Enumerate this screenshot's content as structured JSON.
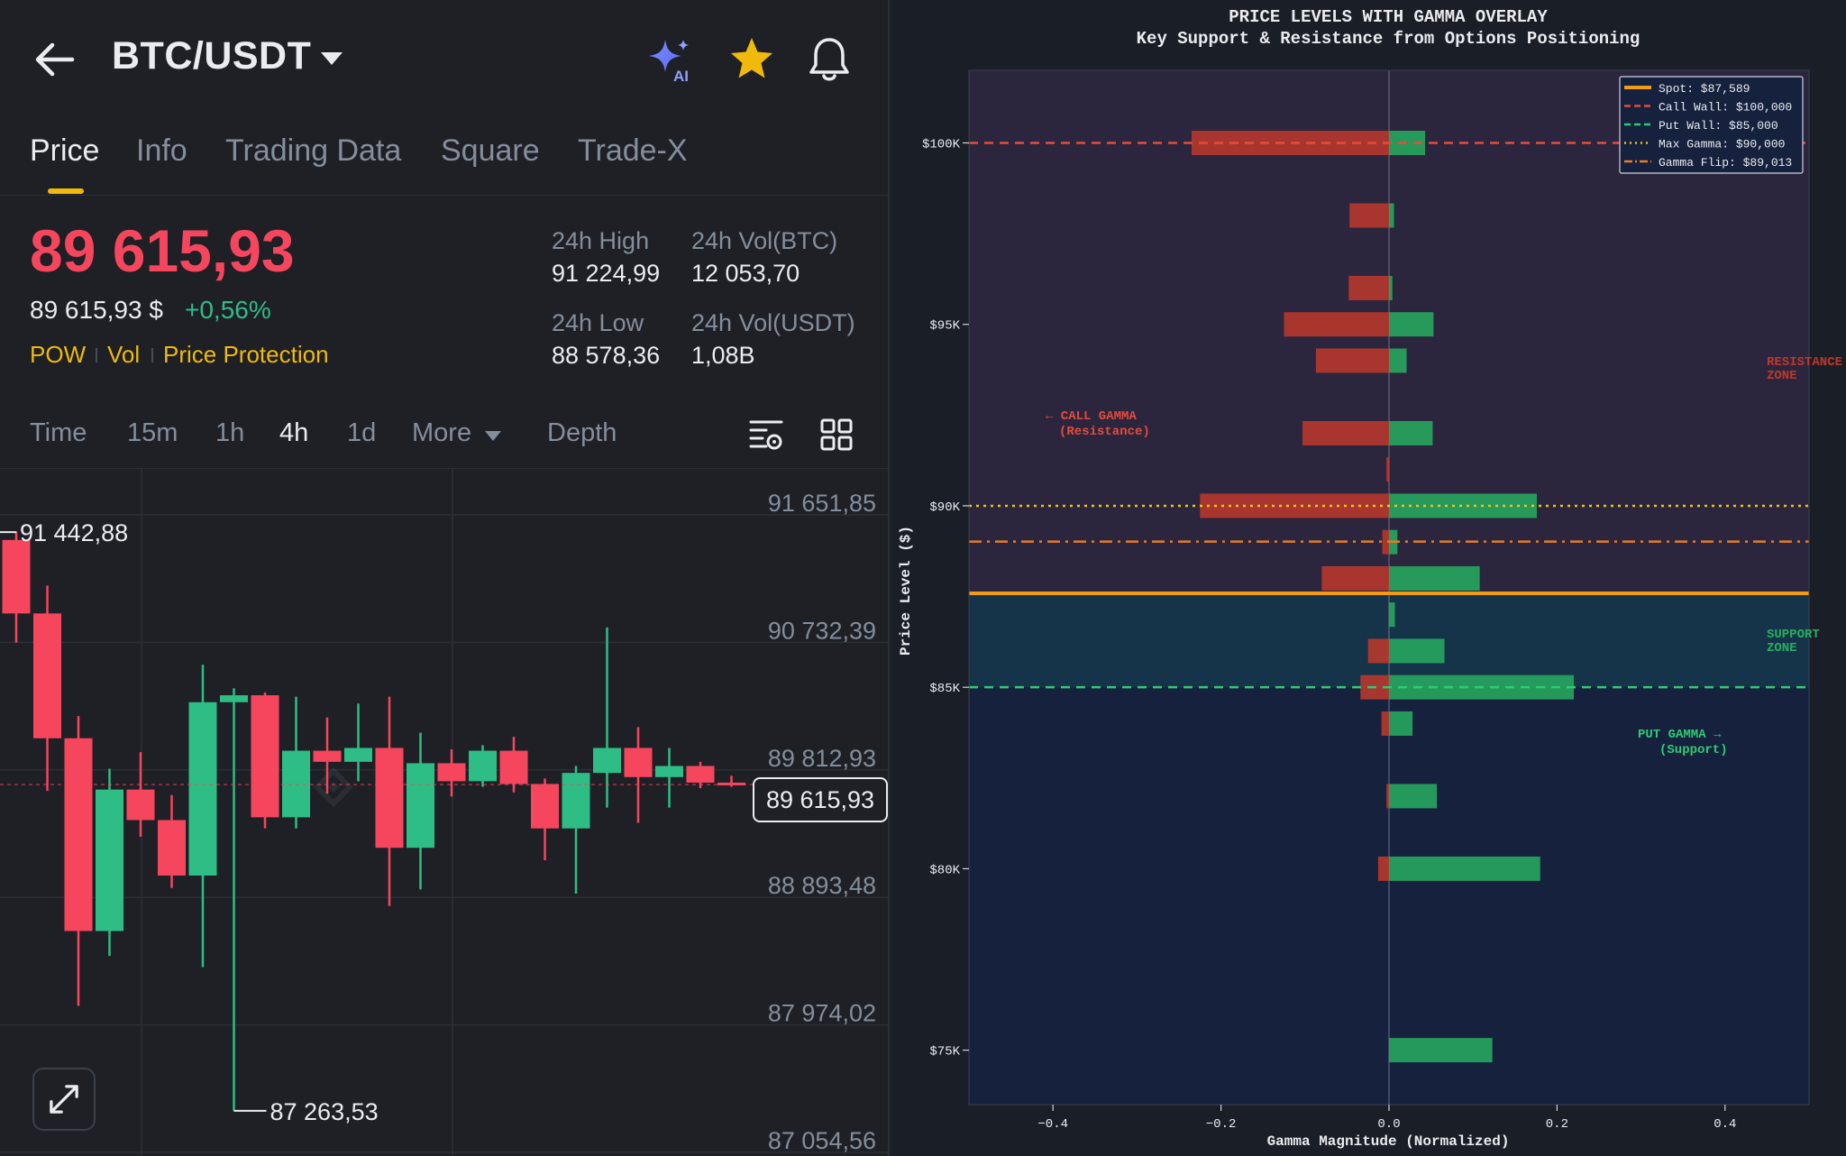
{
  "header": {
    "pair": "BTC/USDT",
    "back_icon": "arrow-left-icon",
    "ai_icon": "sparkle-ai-icon",
    "ai_badge": "AI",
    "favorite_icon": "star-icon",
    "alert_icon": "bell-icon"
  },
  "tabs": [
    {
      "label": "Price",
      "active": true
    },
    {
      "label": "Info",
      "active": false
    },
    {
      "label": "Trading Data",
      "active": false
    },
    {
      "label": "Square",
      "active": false
    },
    {
      "label": "Trade-X",
      "active": false
    }
  ],
  "ticker": {
    "last_price": "89 615,93",
    "usd_price": "89 615,93 $",
    "change": "+0,56%",
    "tags": [
      "POW",
      "Vol",
      "Price Protection"
    ],
    "high_label": "24h High",
    "high_value": "91 224,99",
    "vol_btc_label": "24h Vol(BTC)",
    "vol_btc_value": "12 053,70",
    "low_label": "24h Low",
    "low_value": "88 578,36",
    "vol_usdt_label": "24h Vol(USDT)",
    "vol_usdt_value": "1,08B"
  },
  "timeframes": [
    {
      "label": "Time",
      "active": false
    },
    {
      "label": "15m",
      "active": false
    },
    {
      "label": "1h",
      "active": false
    },
    {
      "label": "4h",
      "active": true
    },
    {
      "label": "1d",
      "active": false
    },
    {
      "label": "More",
      "active": false
    },
    {
      "label": "Depth",
      "active": false
    }
  ],
  "candle_chart": {
    "price_axis": [
      "91 651,85",
      "90 732,39",
      "89 812,93",
      "88 893,48",
      "87 974,02",
      "87 054,56"
    ],
    "current_price": "89 615,93",
    "high_marker": "91 442,88",
    "low_marker": "87 263,53",
    "candles": [
      {
        "o": 91380,
        "c": 90850,
        "h": 91442.88,
        "l": 90640
      },
      {
        "o": 90850,
        "c": 89950,
        "h": 91050,
        "l": 89570
      },
      {
        "o": 89950,
        "c": 88560,
        "h": 90110,
        "l": 88020
      },
      {
        "o": 88560,
        "c": 89580,
        "h": 89730,
        "l": 88380
      },
      {
        "o": 89580,
        "c": 89360,
        "h": 89850,
        "l": 89240
      },
      {
        "o": 89360,
        "c": 88960,
        "h": 89540,
        "l": 88870
      },
      {
        "o": 88960,
        "c": 90210,
        "h": 90480,
        "l": 88300
      },
      {
        "o": 90210,
        "c": 90260,
        "h": 90310,
        "l": 87263.53
      },
      {
        "o": 90260,
        "c": 89380,
        "h": 90280,
        "l": 89300
      },
      {
        "o": 89380,
        "c": 89860,
        "h": 90250,
        "l": 89300
      },
      {
        "o": 89860,
        "c": 89780,
        "h": 90100,
        "l": 89550
      },
      {
        "o": 89780,
        "c": 89880,
        "h": 90200,
        "l": 89640
      },
      {
        "o": 89880,
        "c": 89160,
        "h": 90250,
        "l": 88740
      },
      {
        "o": 89160,
        "c": 89770,
        "h": 89990,
        "l": 88860
      },
      {
        "o": 89770,
        "c": 89640,
        "h": 89870,
        "l": 89530
      },
      {
        "o": 89640,
        "c": 89860,
        "h": 89900,
        "l": 89600
      },
      {
        "o": 89860,
        "c": 89620,
        "h": 89960,
        "l": 89560
      },
      {
        "o": 89620,
        "c": 89300,
        "h": 89660,
        "l": 89070
      },
      {
        "o": 89300,
        "c": 89700,
        "h": 89750,
        "l": 88830
      },
      {
        "o": 89700,
        "c": 89880,
        "h": 90750,
        "l": 89450
      },
      {
        "o": 89880,
        "c": 89670,
        "h": 90030,
        "l": 89340
      },
      {
        "o": 89670,
        "c": 89750,
        "h": 89880,
        "l": 89450
      },
      {
        "o": 89750,
        "c": 89630,
        "h": 89780,
        "l": 89590
      },
      {
        "o": 89630,
        "c": 89616,
        "h": 89680,
        "l": 89600
      }
    ]
  },
  "gamma_chart": {
    "title": "PRICE LEVELS WITH GAMMA OVERLAY",
    "subtitle": "Key Support & Resistance from Options Positioning",
    "xlabel": "Gamma Magnitude (Normalized)",
    "ylabel": "Price Level ($)",
    "xticks": [
      "−0.4",
      "−0.2",
      "0.0",
      "0.2",
      "0.4"
    ],
    "yticks": [
      "$100K",
      "$95K",
      "$90K",
      "$85K",
      "$80K",
      "$75K"
    ],
    "legend": [
      {
        "label": "Spot: $87,589",
        "color": "#f39c12",
        "style": "solid"
      },
      {
        "label": "Call Wall: $100,000",
        "color": "#e74c3c",
        "style": "dashed"
      },
      {
        "label": "Put Wall: $85,000",
        "color": "#2ecc71",
        "style": "dashed"
      },
      {
        "label": "Max Gamma: $90,000",
        "color": "#f1c40f",
        "style": "dotted"
      },
      {
        "label": "Gamma Flip: $89,013",
        "color": "#e67e22",
        "style": "dashdot"
      }
    ],
    "annotations": {
      "call_gamma": [
        "← CALL GAMMA",
        "(Resistance)"
      ],
      "put_gamma": [
        "PUT GAMMA →",
        "(Support)"
      ],
      "resistance": [
        "RESISTANCE",
        "ZONE"
      ],
      "support": [
        "SUPPORT",
        "ZONE"
      ]
    }
  },
  "chart_data": {
    "type": "bar",
    "orientation": "horizontal",
    "title": "PRICE LEVELS WITH GAMMA OVERLAY",
    "subtitle": "Key Support & Resistance from Options Positioning",
    "xlabel": "Gamma Magnitude (Normalized)",
    "ylabel": "Price Level ($)",
    "xlim": [
      -0.5,
      0.5
    ],
    "ylim": [
      73500,
      102000
    ],
    "grid": false,
    "legend_position": "top-right",
    "reference_lines": {
      "spot": 87589,
      "call_wall": 100000,
      "put_wall": 85000,
      "max_gamma": 90000,
      "gamma_flip": 89013
    },
    "zones": {
      "resistance": [
        87589,
        102000
      ],
      "support": [
        85000,
        87589
      ]
    },
    "levels": [
      100000,
      98000,
      96000,
      95000,
      94000,
      92000,
      91000,
      90000,
      89000,
      88000,
      87000,
      86000,
      85000,
      84000,
      82000,
      80000,
      75000
    ],
    "series": [
      {
        "name": "Call Gamma",
        "color": "#c0392b",
        "values": [
          -0.235,
          -0.047,
          -0.048,
          -0.125,
          -0.087,
          -0.103,
          -0.003,
          -0.225,
          -0.008,
          -0.08,
          0,
          -0.025,
          -0.034,
          -0.009,
          -0.003,
          -0.013,
          0
        ]
      },
      {
        "name": "Put Gamma",
        "color": "#27ae60",
        "values": [
          0.043,
          0.006,
          0.004,
          0.053,
          0.021,
          0.052,
          0,
          0.176,
          0.01,
          0.108,
          0.007,
          0.066,
          0.22,
          0.028,
          0.057,
          0.18,
          0.123
        ]
      }
    ]
  }
}
